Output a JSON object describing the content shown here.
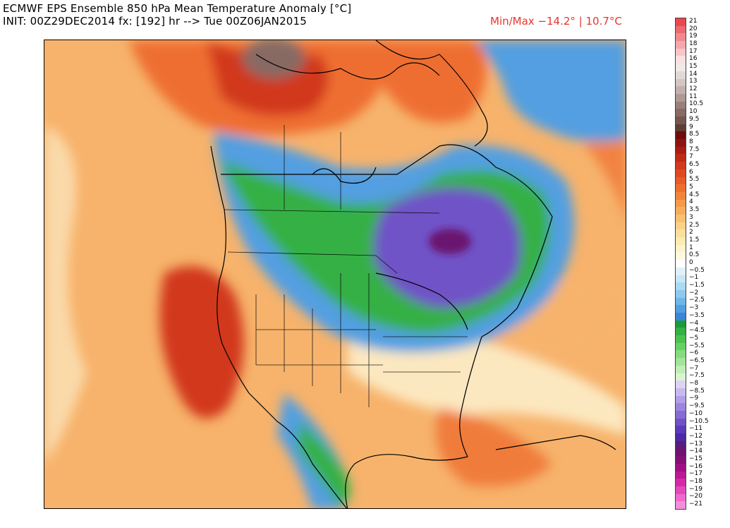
{
  "header": {
    "title_line1": "ECMWF EPS Ensemble 850 hPa Mean Temperature Anomaly [°C]",
    "title_line2": "INIT: 00Z29DEC2014 fx: [192] hr --> Tue 00Z06JAN2015",
    "minmax": "Min/Max −14.2° | 10.7°C"
  },
  "colorbar": {
    "labels": [
      "21",
      "20",
      "19",
      "18",
      "17",
      "16",
      "15",
      "14",
      "13",
      "12",
      "11",
      "10.5",
      "10",
      "9.5",
      "9",
      "8.5",
      "8",
      "7.5",
      "7",
      "6.5",
      "6",
      "5.5",
      "5",
      "4.5",
      "4",
      "3.5",
      "3",
      "2.5",
      "2",
      "1.5",
      "1",
      "0.5",
      "0",
      "−0.5",
      "−1",
      "−1.5",
      "−2",
      "−2.5",
      "−3",
      "−3.5",
      "−4",
      "−4.5",
      "−5",
      "−5.5",
      "−6",
      "−6.5",
      "−7",
      "−7.5",
      "−8",
      "−8.5",
      "−9",
      "−9.5",
      "−10",
      "−10.5",
      "−11",
      "−12",
      "−13",
      "−14",
      "−15",
      "−16",
      "−17",
      "−18",
      "−19",
      "−20",
      "−21"
    ],
    "colors": [
      "#e8484d",
      "#ec6a6e",
      "#f08a8d",
      "#f4a8ab",
      "#f8c6c8",
      "#fbe0e1",
      "#efe9e8",
      "#e2d9d7",
      "#d4c6c3",
      "#c3b0ac",
      "#b09893",
      "#9b807a",
      "#876b64",
      "#74574f",
      "#5e3f35",
      "#6f0d0d",
      "#8e1414",
      "#a81c14",
      "#bf2a16",
      "#d1381c",
      "#dd4a22",
      "#e65b28",
      "#ee6e30",
      "#f2843a",
      "#f59a4a",
      "#f7ad5e",
      "#f9c072",
      "#fad187",
      "#fbe09c",
      "#fcebb2",
      "#fdf4c8",
      "#fef9dc",
      "#ffffff",
      "#dff1fa",
      "#c7e7f7",
      "#aadaf3",
      "#8ccaee",
      "#6eb7e8",
      "#529fe1",
      "#3b86d6",
      "#1f9a3a",
      "#34b044",
      "#4bc250",
      "#66d064",
      "#84dc7e",
      "#a2e59a",
      "#bfeeb6",
      "#d8f5d0",
      "#ddd4f5",
      "#c8baee",
      "#b29fe6",
      "#9c85dd",
      "#866bd3",
      "#7052c7",
      "#5b3bb8",
      "#4a2aa6",
      "#5a1c7a",
      "#6b1470",
      "#850e78",
      "#a00e86",
      "#bc1796",
      "#d42aa8",
      "#e448bb",
      "#ee6acc",
      "#f48ddb"
    ]
  },
  "map": {
    "colors": {
      "ocean_warm": "#f7b36c",
      "warm": "#ee6e30",
      "hot": "#d1381c",
      "brown_max": "#876b64",
      "neutral": "#fef9dc",
      "cold_blue": "#529fe1",
      "cold_green": "#34b044",
      "cold_purple": "#7052c7",
      "cold_min": "#6b1470"
    }
  }
}
